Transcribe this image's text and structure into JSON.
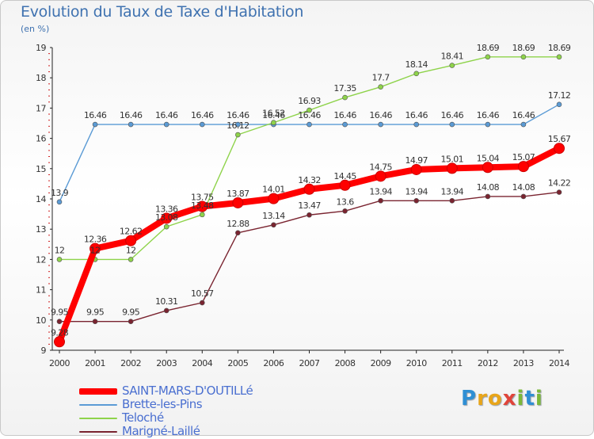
{
  "title": "Evolution du Taux de Taxe d'Habitation",
  "unit": "(en %)",
  "logo_letters": [
    {
      "ch": "P",
      "color": "#2f8fd4"
    },
    {
      "ch": "r",
      "color": "#e8a51a"
    },
    {
      "ch": "o",
      "color": "#e8a51a"
    },
    {
      "ch": "x",
      "color": "#e0443a"
    },
    {
      "ch": "i",
      "color": "#7cb83a"
    },
    {
      "ch": "t",
      "color": "#2f8fd4"
    },
    {
      "ch": "i",
      "color": "#7cb83a"
    }
  ],
  "chart_data": {
    "type": "line",
    "title": "Evolution du Taux de Taxe d'Habitation",
    "ylabel": "(en %)",
    "xlabel": "",
    "x": [
      "2000",
      "2001",
      "2002",
      "2003",
      "2004",
      "2005",
      "2006",
      "2007",
      "2008",
      "2009",
      "2010",
      "2011",
      "2012",
      "2013",
      "2014"
    ],
    "yticks": [
      "9",
      "10",
      "11",
      "12",
      "13",
      "14",
      "15",
      "16",
      "17",
      "18",
      "19"
    ],
    "ylim": [
      9,
      19
    ],
    "grid": false,
    "legend_position": "bottom-left",
    "series": [
      {
        "name": "SAINT-MARS-D'OUTILLé",
        "color": "#ff0000",
        "emphasis": true,
        "values": [
          9.28,
          12.36,
          12.62,
          13.36,
          13.75,
          13.87,
          14.01,
          14.32,
          14.45,
          14.75,
          14.97,
          15.01,
          15.04,
          15.07,
          15.67
        ],
        "labels": [
          "9.28",
          "12.36",
          "12.62",
          "13.36",
          "13.75",
          "13.87",
          "14.01",
          "14.32",
          "14.45",
          "14.75",
          "14.97",
          "15.01",
          "15.04",
          "15.07",
          "15.67"
        ]
      },
      {
        "name": "Brette-les-Pins",
        "color": "#5b9bd5",
        "values": [
          13.9,
          16.46,
          16.46,
          16.46,
          16.46,
          16.46,
          16.46,
          16.46,
          16.46,
          16.46,
          16.46,
          16.46,
          16.46,
          16.46,
          17.12
        ],
        "labels": [
          "13.9",
          "16.46",
          "16.46",
          "16.46",
          "16.46",
          "16.46",
          "16.46",
          "16.46",
          "16.46",
          "16.46",
          "16.46",
          "16.46",
          "16.46",
          "16.46",
          "17.12"
        ]
      },
      {
        "name": "Teloché",
        "color": "#8ed34a",
        "values": [
          12,
          12,
          12,
          13.08,
          13.48,
          16.12,
          16.52,
          16.93,
          17.35,
          17.7,
          18.14,
          18.41,
          18.69,
          18.69,
          18.69
        ],
        "labels": [
          "12",
          "12",
          "12",
          "13.08",
          "13.48",
          "16.12",
          "16.52",
          "16.93",
          "17.35",
          "17.7",
          "18.14",
          "18.41",
          "18.69",
          "18.69",
          "18.69"
        ]
      },
      {
        "name": "Marigné-Laillé",
        "color": "#7a2430",
        "values": [
          9.95,
          9.95,
          9.95,
          10.31,
          10.57,
          12.88,
          13.14,
          13.47,
          13.6,
          13.94,
          13.94,
          13.94,
          14.08,
          14.08,
          14.22
        ],
        "labels": [
          "9.95",
          "9.95",
          "9.95",
          "10.31",
          "10.57",
          "12.88",
          "13.14",
          "13.47",
          "13.6",
          "13.94",
          "13.94",
          "13.94",
          "14.08",
          "14.08",
          "14.22"
        ]
      }
    ]
  }
}
